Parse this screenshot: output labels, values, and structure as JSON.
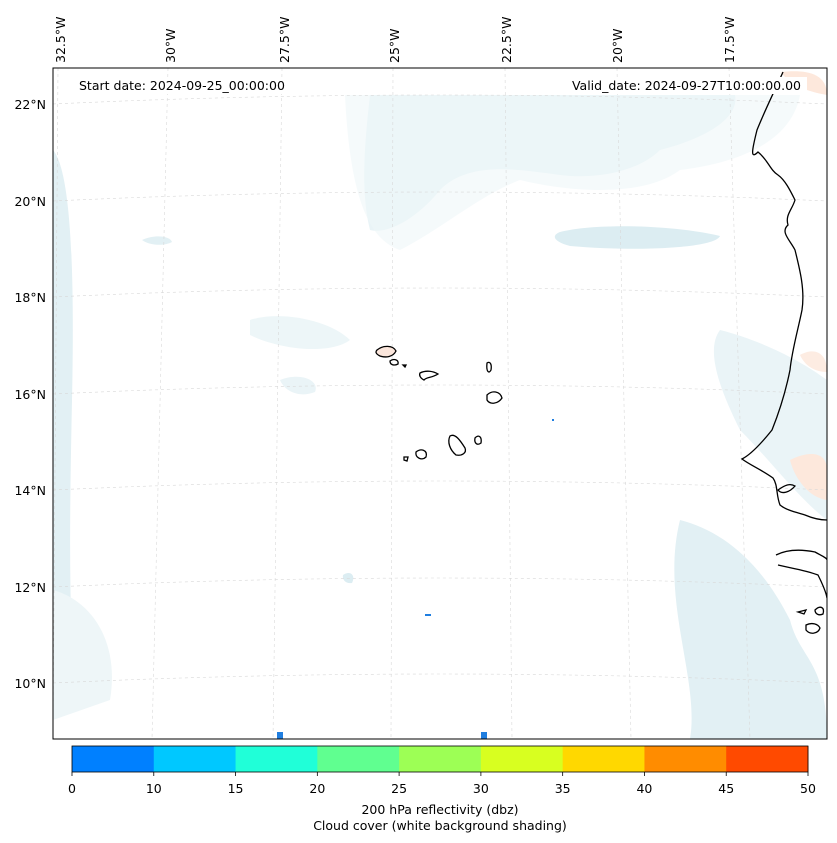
{
  "map": {
    "start_date_label": "Start date: 2024-09-25_00:00:00",
    "valid_date_label": "Valid_date: 2024-09-27T10:00:00.00",
    "longitude_labels": [
      "32.5°W",
      "30°W",
      "27.5°W",
      "25°W",
      "22.5°W",
      "20°W",
      "17.5°W"
    ],
    "latitude_labels": [
      "22°N",
      "20°N",
      "18°N",
      "16°N",
      "14°N",
      "12°N",
      "10°N"
    ],
    "features": [
      "Cabo Verde islands",
      "West African coastline",
      "cloud cover shading"
    ]
  },
  "colorbar": {
    "tick_labels": [
      "0",
      "10",
      "15",
      "20",
      "25",
      "30",
      "35",
      "40",
      "45",
      "50"
    ],
    "colors": [
      "#0080ff",
      "#00c8ff",
      "#20ffd8",
      "#60ff90",
      "#9dff55",
      "#d8ff20",
      "#ffd800",
      "#ff8c00",
      "#ff4a00"
    ],
    "label_line_1": "200 hPa reflectivity (dbz)",
    "label_line_2": "Cloud cover (white background shading)"
  }
}
